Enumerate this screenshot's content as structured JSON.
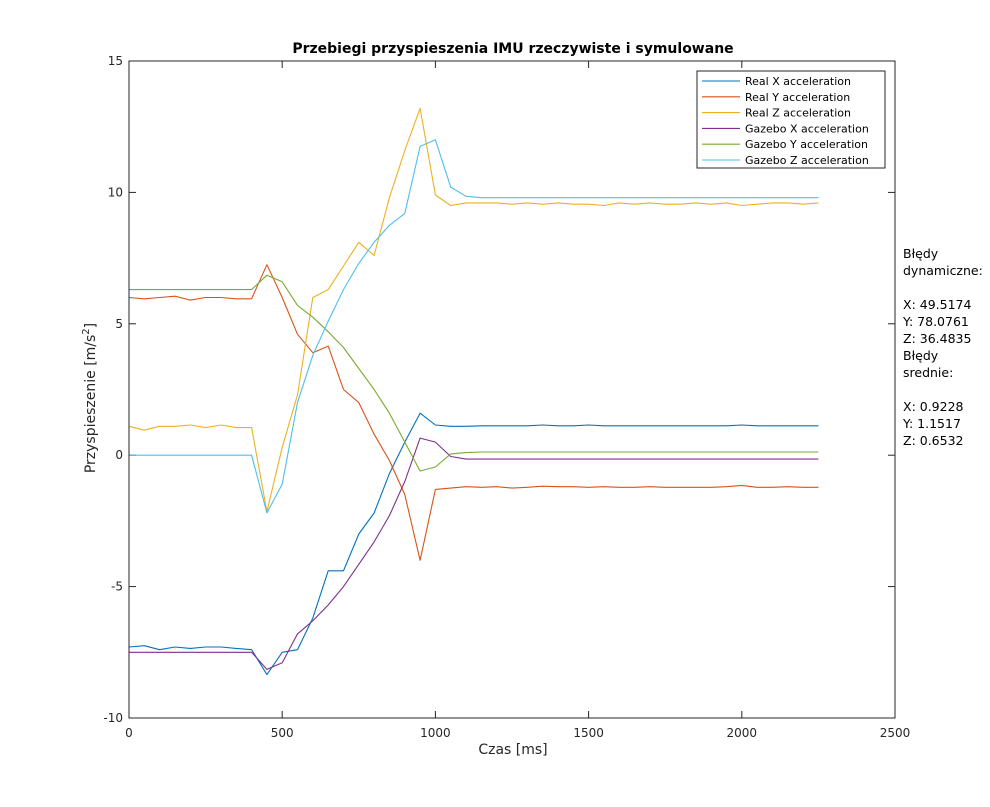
{
  "chart_data": {
    "type": "line",
    "title": "Przebiegi przyspieszenia IMU rzeczywiste i symulowane",
    "xlabel": "Czas [ms]",
    "ylabel_main": "Przyspieszenie [m/s",
    "ylabel_sup": "2",
    "ylabel_close": "]",
    "xlim": [
      0,
      2500
    ],
    "ylim": [
      -10,
      15
    ],
    "xticks": [
      "0",
      "500",
      "1000",
      "1500",
      "2000",
      "2500"
    ],
    "yticks": [
      "-10",
      "-5",
      "0",
      "5",
      "10",
      "15"
    ],
    "grid": false,
    "legend_position": "top-right",
    "x": [
      0,
      50,
      100,
      150,
      200,
      250,
      300,
      350,
      400,
      450,
      500,
      550,
      600,
      650,
      700,
      750,
      800,
      850,
      900,
      950,
      1000,
      1050,
      1100,
      1150,
      1200,
      1250,
      1300,
      1350,
      1400,
      1450,
      1500,
      1550,
      1600,
      1650,
      1700,
      1750,
      1800,
      1850,
      1900,
      1950,
      2000,
      2050,
      2100,
      2150,
      2200,
      2250
    ],
    "series": [
      {
        "name": "Real X acceleration",
        "color": "#0072BD",
        "values": [
          -7.3,
          -7.25,
          -7.4,
          -7.3,
          -7.35,
          -7.3,
          -7.3,
          -7.35,
          -7.4,
          -8.35,
          -7.5,
          -7.4,
          -6.2,
          -4.4,
          -4.4,
          -3.0,
          -2.2,
          -0.7,
          0.5,
          1.6,
          1.15,
          1.1,
          1.1,
          1.12,
          1.12,
          1.12,
          1.12,
          1.15,
          1.12,
          1.12,
          1.15,
          1.12,
          1.12,
          1.12,
          1.12,
          1.12,
          1.12,
          1.12,
          1.12,
          1.12,
          1.15,
          1.12,
          1.12,
          1.12,
          1.12,
          1.12
        ]
      },
      {
        "name": "Real Y acceleration",
        "color": "#D95319",
        "values": [
          6.0,
          5.95,
          6.0,
          6.05,
          5.9,
          6.0,
          6.0,
          5.95,
          5.95,
          7.25,
          6.0,
          4.6,
          3.9,
          4.15,
          2.5,
          2.0,
          0.8,
          -0.2,
          -1.5,
          -4.0,
          -1.3,
          -1.25,
          -1.2,
          -1.22,
          -1.2,
          -1.25,
          -1.22,
          -1.18,
          -1.2,
          -1.2,
          -1.22,
          -1.2,
          -1.22,
          -1.22,
          -1.2,
          -1.22,
          -1.22,
          -1.22,
          -1.22,
          -1.2,
          -1.15,
          -1.22,
          -1.22,
          -1.2,
          -1.22,
          -1.22
        ]
      },
      {
        "name": "Real Z acceleration",
        "color": "#EDB120",
        "values": [
          1.1,
          0.95,
          1.1,
          1.1,
          1.15,
          1.05,
          1.15,
          1.05,
          1.05,
          -2.15,
          0.3,
          2.3,
          6.0,
          6.3,
          7.2,
          8.1,
          7.6,
          9.8,
          11.6,
          13.2,
          9.9,
          9.5,
          9.6,
          9.6,
          9.6,
          9.55,
          9.6,
          9.55,
          9.6,
          9.55,
          9.55,
          9.5,
          9.6,
          9.55,
          9.6,
          9.55,
          9.55,
          9.6,
          9.55,
          9.6,
          9.5,
          9.55,
          9.6,
          9.6,
          9.55,
          9.6
        ]
      },
      {
        "name": "Gazebo X acceleration",
        "color": "#7E2F8E",
        "values": [
          -7.5,
          -7.5,
          -7.5,
          -7.5,
          -7.5,
          -7.5,
          -7.5,
          -7.5,
          -7.5,
          -8.15,
          -7.9,
          -6.8,
          -6.3,
          -5.7,
          -5.0,
          -4.15,
          -3.3,
          -2.3,
          -1.0,
          0.65,
          0.5,
          -0.05,
          -0.15,
          -0.15,
          -0.15,
          -0.15,
          -0.15,
          -0.15,
          -0.15,
          -0.15,
          -0.15,
          -0.15,
          -0.15,
          -0.15,
          -0.15,
          -0.15,
          -0.15,
          -0.15,
          -0.15,
          -0.15,
          -0.15,
          -0.15,
          -0.15,
          -0.15,
          -0.15,
          -0.15
        ]
      },
      {
        "name": "Gazebo Y acceleration",
        "color": "#77AC30",
        "values": [
          6.3,
          6.3,
          6.3,
          6.3,
          6.3,
          6.3,
          6.3,
          6.3,
          6.3,
          6.85,
          6.6,
          5.7,
          5.25,
          4.7,
          4.1,
          3.3,
          2.5,
          1.6,
          0.5,
          -0.6,
          -0.45,
          0.05,
          0.1,
          0.12,
          0.12,
          0.12,
          0.12,
          0.12,
          0.12,
          0.12,
          0.12,
          0.12,
          0.12,
          0.12,
          0.12,
          0.12,
          0.12,
          0.12,
          0.12,
          0.12,
          0.12,
          0.12,
          0.12,
          0.12,
          0.12,
          0.12
        ]
      },
      {
        "name": "Gazebo Z acceleration",
        "color": "#4DBEEE",
        "values": [
          0,
          0,
          0,
          0,
          0,
          0,
          0,
          0,
          0,
          -2.2,
          -1.1,
          2.0,
          3.8,
          5.1,
          6.3,
          7.3,
          8.1,
          8.75,
          9.2,
          11.75,
          12.0,
          10.2,
          9.85,
          9.8,
          9.8,
          9.8,
          9.8,
          9.8,
          9.8,
          9.8,
          9.8,
          9.8,
          9.8,
          9.8,
          9.8,
          9.8,
          9.8,
          9.8,
          9.8,
          9.8,
          9.8,
          9.8,
          9.8,
          9.8,
          9.8,
          9.8
        ]
      }
    ]
  },
  "side_panel": {
    "lines": [
      "Błędy",
      "dynamiczne:",
      "",
      "X: 49.5174",
      "Y: 78.0761",
      "Z: 36.4835",
      "Błędy",
      "srednie:",
      "",
      "X: 0.9228",
      "Y: 1.1517",
      "Z: 0.6532"
    ]
  }
}
